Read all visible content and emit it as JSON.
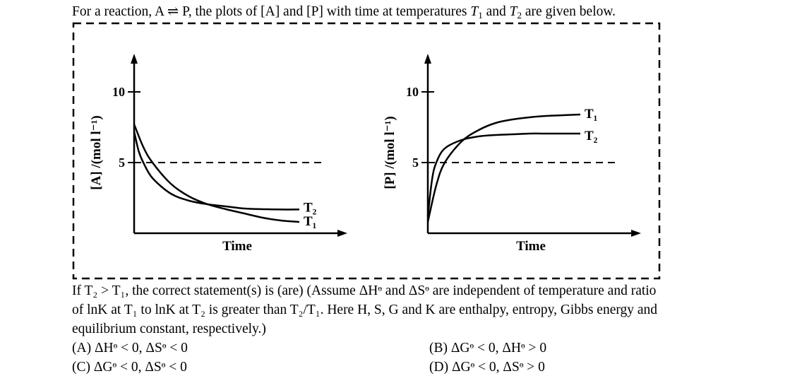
{
  "question": {
    "p1": "For a reaction, A ",
    "arrow": "⇌",
    "p2": " P, the plots of [A] and [P] with time at temperatures ",
    "t1": "T",
    "t1_sub": "1",
    "and": " and ",
    "t2": "T",
    "t2_sub": "2",
    "p3": " are given below."
  },
  "statement": {
    "line1": "If T₂ > T₁, the correct statement(s) is (are) (Assume ΔHᶱ and ΔSᶱ are independent of temperature and ratio",
    "line2": "of lnK at T₁ to lnK at T₂ is greater than T₂/T₁. Here H, S, G and K are enthalpy, entropy, Gibbs energy and",
    "line3": "equilibrium constant, respectively.)"
  },
  "options": {
    "a": "(A) ΔHᶱ < 0, ΔSᶱ < 0",
    "b": "(B) ΔGᶱ < 0, ΔHᶱ > 0",
    "c": "(C) ΔGᶱ < 0, ΔSᶱ < 0",
    "d": "(D) ΔGᶱ < 0, ΔSᶱ > 0"
  },
  "chart_data": [
    {
      "type": "line",
      "ylabel": "[A] /(mol l⁻¹)",
      "xlabel": "Time",
      "yticks": [
        5,
        10
      ],
      "ylim": [
        0,
        11.5
      ],
      "xlim": [
        0,
        10
      ],
      "reference_line": {
        "y": 5,
        "style": "dashed"
      },
      "series": [
        {
          "name": "T₁",
          "x": [
            0,
            0.5,
            1,
            2,
            3,
            4,
            5,
            6,
            7,
            8,
            9
          ],
          "y": [
            7.7,
            6.1,
            5.0,
            3.5,
            2.6,
            2.05,
            1.7,
            1.4,
            1.1,
            0.9,
            0.8
          ]
        },
        {
          "name": "T₂",
          "x": [
            0,
            0.25,
            0.5,
            1,
            2,
            3,
            4,
            5,
            6,
            7,
            8,
            9
          ],
          "y": [
            7.2,
            5.8,
            5.0,
            3.9,
            2.8,
            2.3,
            2.05,
            1.9,
            1.75,
            1.7,
            1.68,
            1.68
          ]
        }
      ]
    },
    {
      "type": "line",
      "ylabel": "[P] /(mol l⁻¹)",
      "xlabel": "Time",
      "yticks": [
        5,
        10
      ],
      "ylim": [
        0,
        11.5
      ],
      "xlim": [
        0,
        10
      ],
      "reference_line": {
        "y": 5,
        "style": "dashed"
      },
      "series": [
        {
          "name": "T₁",
          "x": [
            0,
            0.5,
            1,
            2,
            3,
            4,
            5,
            6,
            7,
            8,
            9
          ],
          "y": [
            0.8,
            3.4,
            5.0,
            6.5,
            7.3,
            7.8,
            8.05,
            8.2,
            8.3,
            8.35,
            8.4
          ]
        },
        {
          "name": "T₂",
          "x": [
            0,
            0.25,
            0.5,
            1,
            2,
            3,
            4,
            5,
            6,
            7,
            8,
            9
          ],
          "y": [
            1.2,
            3.8,
            5.0,
            6.0,
            6.6,
            6.85,
            6.95,
            7.0,
            7.05,
            7.05,
            7.05,
            7.05
          ]
        }
      ]
    }
  ]
}
